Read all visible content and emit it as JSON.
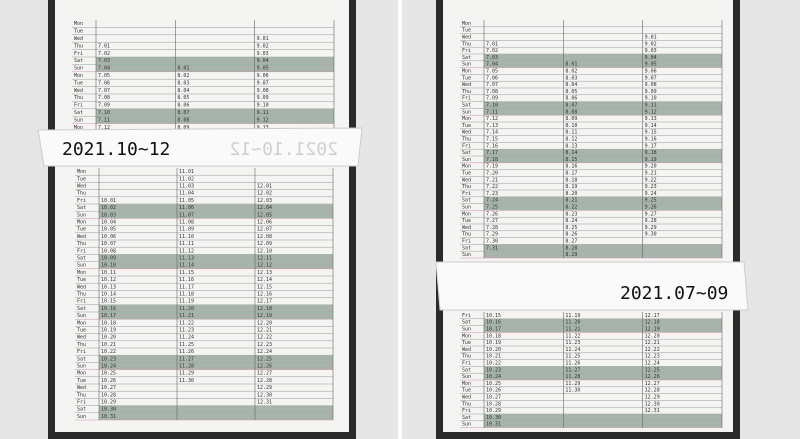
{
  "left": {
    "label": "2021.10~12",
    "rows": [
      [
        "Mon",
        null,
        "11.01",
        null
      ],
      [
        "Tue",
        null,
        "11.02",
        null
      ],
      [
        "Wed",
        null,
        "11.03",
        "12.01"
      ],
      [
        "Thu",
        null,
        "11.04",
        "12.02"
      ],
      [
        "Fri",
        "10.01",
        "11.05",
        "12.03"
      ],
      [
        "Sat",
        "10.02",
        "11.06",
        "12.04"
      ],
      [
        "Sun",
        "10.03",
        "11.07",
        "12.05"
      ],
      [
        "Mon",
        "10.04",
        "11.08",
        "12.06"
      ],
      [
        "Tue",
        "10.05",
        "11.09",
        "12.07"
      ],
      [
        "Wed",
        "10.06",
        "11.10",
        "12.08"
      ],
      [
        "Thu",
        "10.07",
        "11.11",
        "12.09"
      ],
      [
        "Fri",
        "10.08",
        "11.12",
        "12.10"
      ],
      [
        "Sat",
        "10.09",
        "11.13",
        "12.11"
      ],
      [
        "Sun",
        "10.10",
        "11.14",
        "12.12"
      ],
      [
        "Mon",
        "10.11",
        "11.15",
        "12.13"
      ],
      [
        "Tue",
        "10.12",
        "11.16",
        "12.14"
      ],
      [
        "Wed",
        "10.13",
        "11.17",
        "12.15"
      ],
      [
        "Thu",
        "10.14",
        "11.18",
        "12.16"
      ],
      [
        "Fri",
        "10.15",
        "11.19",
        "12.17"
      ],
      [
        "Sat",
        "10.16",
        "11.20",
        "12.18"
      ],
      [
        "Sun",
        "10.17",
        "11.21",
        "12.19"
      ],
      [
        "Mon",
        "10.18",
        "11.22",
        "12.20"
      ],
      [
        "Tue",
        "10.19",
        "11.23",
        "12.21"
      ],
      [
        "Wed",
        "10.20",
        "11.24",
        "12.22"
      ],
      [
        "Thu",
        "10.21",
        "11.25",
        "12.23"
      ],
      [
        "Fri",
        "10.22",
        "11.26",
        "12.24"
      ],
      [
        "Sat",
        "10.23",
        "11.27",
        "12.25"
      ],
      [
        "Sun",
        "10.24",
        "11.28",
        "12.26"
      ],
      [
        "Mon",
        "10.25",
        "11.29",
        "12.27"
      ],
      [
        "Tue",
        "10.26",
        "11.30",
        "12.28"
      ],
      [
        "Wed",
        "10.27",
        null,
        "12.29"
      ],
      [
        "Thu",
        "10.28",
        null,
        "12.30"
      ],
      [
        "Fri",
        "10.29",
        null,
        "12.31"
      ],
      [
        "Sat",
        "10.30",
        null,
        null
      ],
      [
        "Sun",
        "10.31",
        null,
        null
      ]
    ]
  },
  "right": {
    "label": "2021.07~09",
    "rows": [
      [
        "Mon",
        null,
        null,
        null
      ],
      [
        "Tue",
        null,
        null,
        null
      ],
      [
        "Wed",
        null,
        null,
        "9.01"
      ],
      [
        "Thu",
        "7.01",
        null,
        "9.02"
      ],
      [
        "Fri",
        "7.02",
        null,
        "9.03"
      ],
      [
        "Sat",
        "7.03",
        null,
        "9.04"
      ],
      [
        "Sun",
        "7.04",
        "8.01",
        "9.05"
      ],
      [
        "Mon",
        "7.05",
        "8.02",
        "9.06"
      ],
      [
        "Tue",
        "7.06",
        "8.03",
        "9.07"
      ],
      [
        "Wed",
        "7.07",
        "8.04",
        "9.08"
      ],
      [
        "Thu",
        "7.08",
        "8.05",
        "9.09"
      ],
      [
        "Fri",
        "7.09",
        "8.06",
        "9.10"
      ],
      [
        "Sat",
        "7.10",
        "8.07",
        "9.11"
      ],
      [
        "Sun",
        "7.11",
        "8.08",
        "9.12"
      ],
      [
        "Mon",
        "7.12",
        "8.09",
        "9.13"
      ],
      [
        "Tue",
        "7.13",
        "8.10",
        "9.14"
      ],
      [
        "Wed",
        "7.14",
        "8.11",
        "9.15"
      ],
      [
        "Thu",
        "7.15",
        "8.12",
        "9.16"
      ],
      [
        "Fri",
        "7.16",
        "8.13",
        "9.17"
      ],
      [
        "Sat",
        "7.17",
        "8.14",
        "9.18"
      ],
      [
        "Sun",
        "7.18",
        "8.15",
        "9.19"
      ],
      [
        "Mon",
        "7.19",
        "8.16",
        "9.20"
      ],
      [
        "Tue",
        "7.20",
        "8.17",
        "9.21"
      ],
      [
        "Wed",
        "7.21",
        "8.18",
        "9.22"
      ],
      [
        "Thu",
        "7.22",
        "8.19",
        "9.23"
      ],
      [
        "Fri",
        "7.23",
        "8.20",
        "9.24"
      ],
      [
        "Sat",
        "7.24",
        "8.21",
        "9.25"
      ],
      [
        "Sun",
        "7.25",
        "8.22",
        "9.26"
      ],
      [
        "Mon",
        "7.26",
        "8.23",
        "9.27"
      ],
      [
        "Tue",
        "7.27",
        "8.24",
        "9.28"
      ],
      [
        "Wed",
        "7.28",
        "8.25",
        "9.29"
      ],
      [
        "Thu",
        "7.29",
        "8.26",
        "9.30"
      ],
      [
        "Fri",
        "7.30",
        "8.27",
        null
      ],
      [
        "Sat",
        "7.31",
        "8.28",
        null
      ],
      [
        "Sun",
        null,
        "8.29",
        null
      ]
    ]
  }
}
